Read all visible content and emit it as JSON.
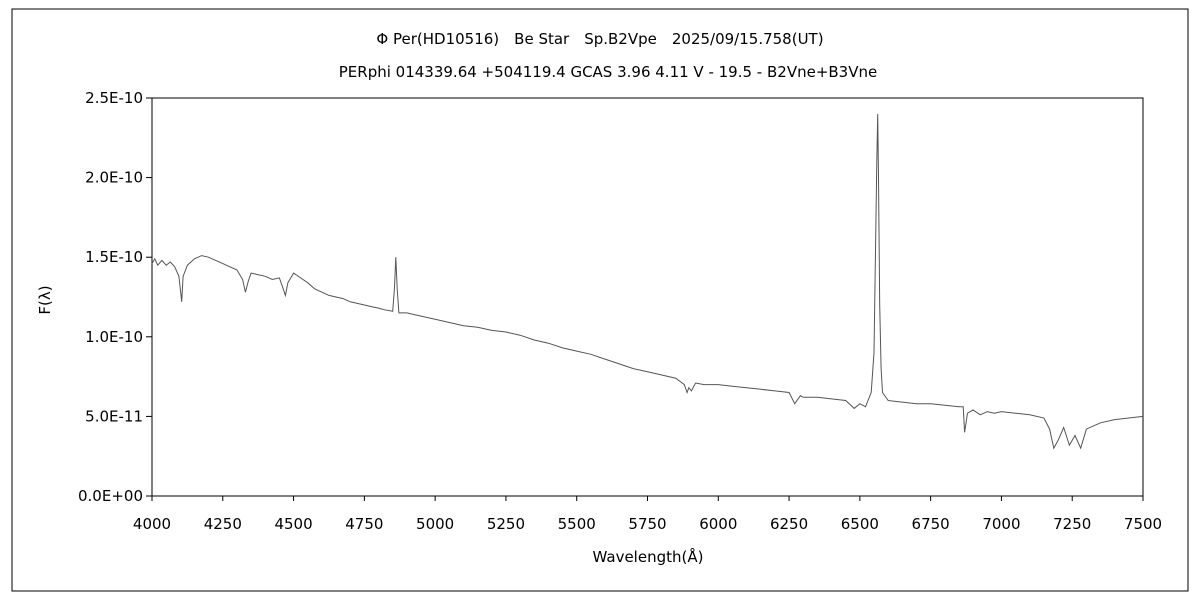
{
  "chart_data": {
    "type": "line",
    "title": "Φ Per(HD10516)　Be Star　Sp.B2Vpe　2025/09/15.758(UT)",
    "subtitle": "PERphi 014339.64 +504119.4 GCAS 3.96 4.11 V - 19.5 - B2Vne+B3Vne",
    "xlabel": "Wavelength(Å)",
    "ylabel": "F(λ)",
    "xlim": [
      4000,
      7500
    ],
    "ylim": [
      0,
      2.5e-10
    ],
    "x_ticks": [
      4000,
      4250,
      4500,
      4750,
      5000,
      5250,
      5500,
      5750,
      6000,
      6250,
      6500,
      6750,
      7000,
      7250,
      7500
    ],
    "x_tick_labels": [
      "4000",
      "4250",
      "4500",
      "4750",
      "5000",
      "5250",
      "5500",
      "5750",
      "6000",
      "6250",
      "6500",
      "6750",
      "7000",
      "7250",
      "7500"
    ],
    "y_ticks": [
      0,
      5e-11,
      1e-10,
      1.5e-10,
      2e-10,
      2.5e-10
    ],
    "y_tick_labels": [
      "0.0E+00",
      "5.0E-11",
      "1.0E-10",
      "1.5E-10",
      "2.0E-10",
      "2.5E-10"
    ],
    "grid": false,
    "line_color": "#555555",
    "series": [
      {
        "x": [
          4000,
          4010,
          4020,
          4035,
          4050,
          4065,
          4080,
          4095,
          4100,
          4105,
          4110,
          4125,
          4150,
          4175,
          4200,
          4225,
          4250,
          4275,
          4300,
          4320,
          4330,
          4340,
          4350,
          4375,
          4400,
          4425,
          4450,
          4460,
          4471,
          4480,
          4500,
          4525,
          4550,
          4575,
          4600,
          4625,
          4650,
          4675,
          4700,
          4725,
          4750,
          4775,
          4800,
          4820,
          4850,
          4856,
          4861,
          4866,
          4872,
          4900,
          4925,
          4950,
          5000,
          5050,
          5100,
          5150,
          5200,
          5250,
          5300,
          5350,
          5400,
          5450,
          5500,
          5550,
          5600,
          5650,
          5700,
          5750,
          5800,
          5850,
          5880,
          5890,
          5896,
          5905,
          5920,
          5950,
          6000,
          6050,
          6100,
          6150,
          6200,
          6250,
          6270,
          6290,
          6300,
          6350,
          6400,
          6450,
          6480,
          6500,
          6520,
          6540,
          6550,
          6555,
          6560,
          6563,
          6566,
          6570,
          6575,
          6580,
          6600,
          6650,
          6700,
          6750,
          6800,
          6850,
          6865,
          6870,
          6880,
          6900,
          6925,
          6950,
          6975,
          7000,
          7050,
          7100,
          7150,
          7170,
          7185,
          7200,
          7220,
          7240,
          7260,
          7280,
          7300,
          7350,
          7400,
          7450,
          7500
        ],
        "y": [
          1.46e-10,
          1.49e-10,
          1.45e-10,
          1.48e-10,
          1.45e-10,
          1.47e-10,
          1.44e-10,
          1.38e-10,
          1.3e-10,
          1.22e-10,
          1.38e-10,
          1.45e-10,
          1.49e-10,
          1.51e-10,
          1.5e-10,
          1.48e-10,
          1.46e-10,
          1.44e-10,
          1.42e-10,
          1.36e-10,
          1.28e-10,
          1.35e-10,
          1.4e-10,
          1.39e-10,
          1.38e-10,
          1.36e-10,
          1.37e-10,
          1.32e-10,
          1.26e-10,
          1.34e-10,
          1.4e-10,
          1.37e-10,
          1.34e-10,
          1.3e-10,
          1.28e-10,
          1.26e-10,
          1.25e-10,
          1.24e-10,
          1.22e-10,
          1.21e-10,
          1.2e-10,
          1.19e-10,
          1.18e-10,
          1.17e-10,
          1.16e-10,
          1.3e-10,
          1.5e-10,
          1.3e-10,
          1.15e-10,
          1.15e-10,
          1.14e-10,
          1.13e-10,
          1.11e-10,
          1.09e-10,
          1.07e-10,
          1.06e-10,
          1.04e-10,
          1.03e-10,
          1.01e-10,
          9.8e-11,
          9.6e-11,
          9.3e-11,
          9.1e-11,
          8.9e-11,
          8.6e-11,
          8.3e-11,
          8e-11,
          7.8e-11,
          7.6e-11,
          7.4e-11,
          7e-11,
          6.5e-11,
          6.8e-11,
          6.6e-11,
          7.1e-11,
          7e-11,
          7e-11,
          6.9e-11,
          6.8e-11,
          6.7e-11,
          6.6e-11,
          6.5e-11,
          5.8e-11,
          6.3e-11,
          6.2e-11,
          6.2e-11,
          6.1e-11,
          6e-11,
          5.5e-11,
          5.8e-11,
          5.6e-11,
          6.5e-11,
          9e-11,
          1.5e-10,
          2.1e-10,
          2.4e-10,
          2e-10,
          1.2e-10,
          8e-11,
          6.5e-11,
          6e-11,
          5.9e-11,
          5.8e-11,
          5.8e-11,
          5.7e-11,
          5.6e-11,
          5.6e-11,
          4e-11,
          5.2e-11,
          5.4e-11,
          5.1e-11,
          5.3e-11,
          5.2e-11,
          5.3e-11,
          5.2e-11,
          5.1e-11,
          4.9e-11,
          4.2e-11,
          3e-11,
          3.5e-11,
          4.3e-11,
          3.2e-11,
          3.8e-11,
          3e-11,
          4.2e-11,
          4.6e-11,
          4.8e-11,
          4.9e-11,
          5e-11
        ]
      }
    ]
  }
}
